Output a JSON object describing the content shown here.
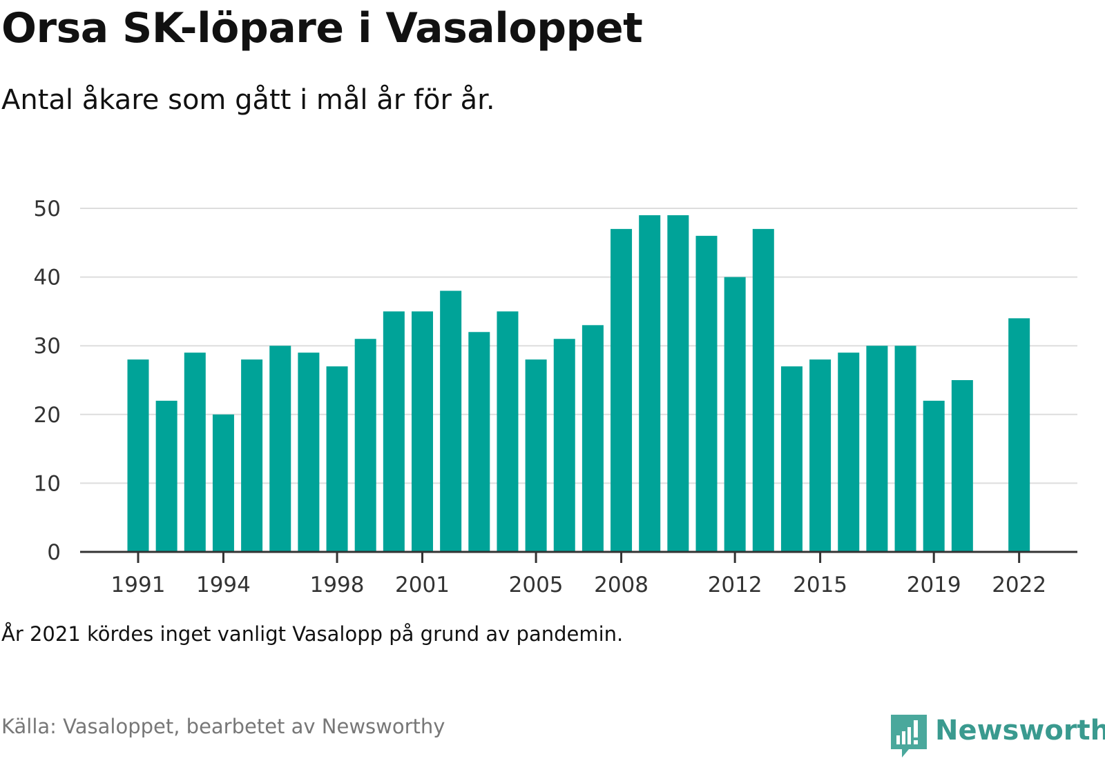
{
  "header": {
    "title": "Orsa SK-löpare i Vasaloppet",
    "subtitle": "Antal åkare som gått i mål år för år."
  },
  "footer": {
    "note": "År 2021 kördes inget vanligt Vasalopp på grund av pandemin.",
    "source": "Källa: Vasaloppet, bearbetet av Newsworthy",
    "brand": "Newsworthy"
  },
  "colors": {
    "bar": "#00a398",
    "grid": "#dddddd",
    "axis": "#333333",
    "brand": "#3a9a8f"
  },
  "chart_data": {
    "type": "bar",
    "title": "Orsa SK-löpare i Vasaloppet",
    "subtitle": "Antal åkare som gått i mål år för år.",
    "x": [
      1991,
      1992,
      1993,
      1994,
      1995,
      1996,
      1997,
      1998,
      1999,
      2000,
      2001,
      2002,
      2003,
      2004,
      2005,
      2006,
      2007,
      2008,
      2009,
      2010,
      2011,
      2012,
      2013,
      2014,
      2015,
      2016,
      2017,
      2018,
      2019,
      2020,
      2021,
      2022
    ],
    "values": [
      28,
      22,
      29,
      20,
      28,
      30,
      29,
      27,
      31,
      35,
      35,
      38,
      32,
      35,
      28,
      31,
      33,
      47,
      49,
      49,
      46,
      40,
      47,
      27,
      28,
      29,
      30,
      30,
      22,
      25,
      null,
      34
    ],
    "x_ticks": [
      "1991",
      "1994",
      "1998",
      "2001",
      "2005",
      "2008",
      "2012",
      "2015",
      "2019",
      "2022"
    ],
    "y_ticks": [
      "0",
      "10",
      "20",
      "30",
      "40",
      "50"
    ],
    "ylim": [
      0,
      50
    ],
    "grid": true,
    "legend": "none"
  }
}
